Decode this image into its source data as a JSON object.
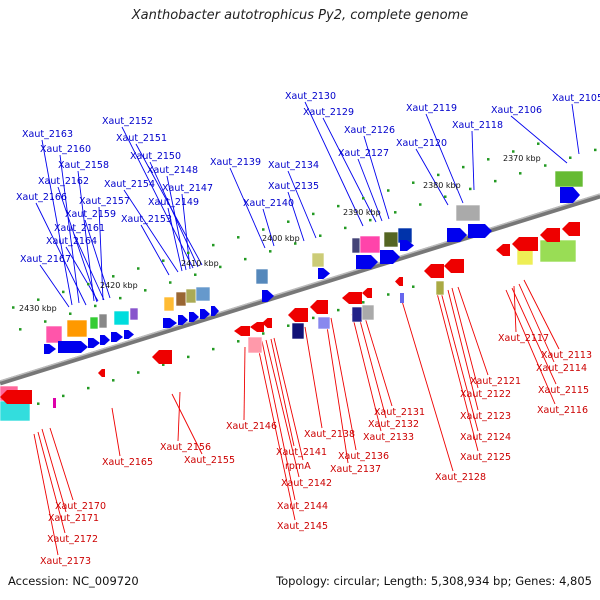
{
  "title": "Xanthobacter autotrophicus Py2, complete genome",
  "footer": {
    "accession_label": "Accession:",
    "accession": "NC_009720",
    "topology_label": "Topology:",
    "topology": "circular",
    "length_label": "Length:",
    "length": "5,308,934 bp",
    "genes_label": "Genes:",
    "genes": "4,805"
  },
  "colors": {
    "forward_gene": "#0000ee",
    "reverse_gene": "#ee0000",
    "forward_label": "#0000cc",
    "reverse_label": "#cc0000",
    "backbone": "#888888",
    "tick": "#229922"
  },
  "kbp_markers": [
    "2370 kbp",
    "2380 kbp",
    "2390 kbp",
    "2400 kbp",
    "2410 kbp",
    "2420 kbp",
    "2430 kbp"
  ],
  "forward_labels": [
    "Xaut_2163",
    "Xaut_2160",
    "Xaut_2158",
    "Xaut_2162",
    "Xaut_2166",
    "Xaut_2157",
    "Xaut_2159",
    "Xaut_2161",
    "Xaut_2164",
    "Xaut_2167",
    "Xaut_2152",
    "Xaut_2151",
    "Xaut_2150",
    "Xaut_2154",
    "Xaut_2148",
    "Xaut_2147",
    "Xaut_2149",
    "Xaut_2153",
    "Xaut_2139",
    "Xaut_2140",
    "Xaut_2134",
    "Xaut_2135",
    "Xaut_2130",
    "Xaut_2129",
    "Xaut_2126",
    "Xaut_2127",
    "Xaut_2120",
    "Xaut_2119",
    "Xaut_2118",
    "Xaut_2106",
    "Xaut_2105"
  ],
  "reverse_labels": [
    "Xaut_2117",
    "Xaut_2113",
    "Xaut_2114",
    "Xaut_2115",
    "Xaut_2116",
    "Xaut_2121",
    "Xaut_2122",
    "Xaut_2123",
    "Xaut_2124",
    "Xaut_2125",
    "Xaut_2128",
    "Xaut_2131",
    "Xaut_2132",
    "Xaut_2133",
    "Xaut_2136",
    "Xaut_2137",
    "Xaut_2138",
    "Xaut_2146",
    "Xaut_2141",
    "rpmA",
    "Xaut_2142",
    "Xaut_2144",
    "Xaut_2145",
    "Xaut_2156",
    "Xaut_2155",
    "Xaut_2165",
    "Xaut_2170",
    "Xaut_2171",
    "Xaut_2172",
    "Xaut_2173"
  ]
}
